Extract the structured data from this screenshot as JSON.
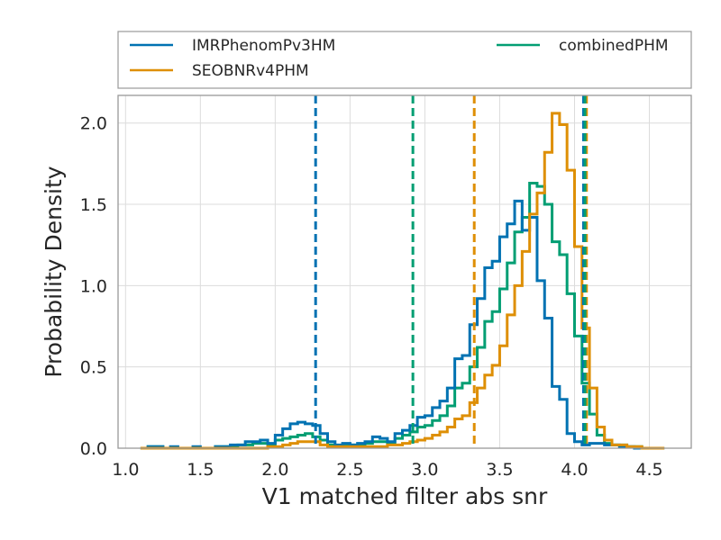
{
  "chart_data": {
    "type": "histogram",
    "xlabel": "V1 matched filter abs snr",
    "ylabel": "Probability Density",
    "xlim": [
      0.95,
      4.78
    ],
    "ylim": [
      0,
      2.17
    ],
    "xticks": [
      1.0,
      1.5,
      2.0,
      2.5,
      3.0,
      3.5,
      4.0,
      4.5
    ],
    "xtick_labels": [
      "1.0",
      "1.5",
      "2.0",
      "2.5",
      "3.0",
      "3.5",
      "4.0",
      "4.5"
    ],
    "yticks": [
      0.0,
      0.5,
      1.0,
      1.5,
      2.0
    ],
    "ytick_labels": [
      "0.0",
      "0.5",
      "1.0",
      "1.5",
      "2.0"
    ],
    "grid": true,
    "legend_position": "top, outside",
    "series": [
      {
        "name": "IMRPhenomPv3HM",
        "color": "#0072b2",
        "bin_edges": [
          1.1,
          1.15,
          1.2,
          1.25,
          1.3,
          1.35,
          1.4,
          1.45,
          1.5,
          1.55,
          1.6,
          1.65,
          1.7,
          1.75,
          1.8,
          1.85,
          1.9,
          1.95,
          2.0,
          2.05,
          2.1,
          2.15,
          2.2,
          2.25,
          2.3,
          2.35,
          2.4,
          2.45,
          2.5,
          2.55,
          2.6,
          2.65,
          2.7,
          2.75,
          2.8,
          2.85,
          2.9,
          2.95,
          3.0,
          3.05,
          3.1,
          3.15,
          3.2,
          3.25,
          3.3,
          3.35,
          3.4,
          3.45,
          3.5,
          3.55,
          3.6,
          3.65,
          3.7,
          3.75,
          3.8,
          3.85,
          3.9,
          3.95,
          4.0,
          4.05,
          4.1,
          4.15,
          4.2,
          4.25,
          4.3,
          4.35,
          4.4,
          4.45,
          4.5,
          4.55,
          4.6
        ],
        "values": [
          0.0,
          0.01,
          0.01,
          0.0,
          0.01,
          0.0,
          0.0,
          0.01,
          0.0,
          0.0,
          0.01,
          0.01,
          0.02,
          0.02,
          0.04,
          0.04,
          0.05,
          0.03,
          0.08,
          0.12,
          0.15,
          0.16,
          0.15,
          0.14,
          0.09,
          0.04,
          0.02,
          0.03,
          0.02,
          0.03,
          0.04,
          0.07,
          0.06,
          0.04,
          0.09,
          0.11,
          0.14,
          0.19,
          0.2,
          0.25,
          0.29,
          0.37,
          0.55,
          0.57,
          0.76,
          0.92,
          1.11,
          1.15,
          1.3,
          1.38,
          1.52,
          1.34,
          1.42,
          1.03,
          0.8,
          0.38,
          0.3,
          0.09,
          0.04,
          0.02,
          0.03,
          0.03,
          0.02,
          0.02,
          0.01,
          0.01,
          0.0,
          0.0,
          0.0,
          0.0
        ]
      },
      {
        "name": "SEOBNRv4PHM",
        "color": "#de8f05",
        "bin_edges": [
          1.1,
          1.15,
          1.2,
          1.25,
          1.3,
          1.35,
          1.4,
          1.45,
          1.5,
          1.55,
          1.6,
          1.65,
          1.7,
          1.75,
          1.8,
          1.85,
          1.9,
          1.95,
          2.0,
          2.05,
          2.1,
          2.15,
          2.2,
          2.25,
          2.3,
          2.35,
          2.4,
          2.45,
          2.5,
          2.55,
          2.6,
          2.65,
          2.7,
          2.75,
          2.8,
          2.85,
          2.9,
          2.95,
          3.0,
          3.05,
          3.1,
          3.15,
          3.2,
          3.25,
          3.3,
          3.35,
          3.4,
          3.45,
          3.5,
          3.55,
          3.6,
          3.65,
          3.7,
          3.75,
          3.8,
          3.85,
          3.9,
          3.95,
          4.0,
          4.05,
          4.1,
          4.15,
          4.2,
          4.25,
          4.3,
          4.35,
          4.4,
          4.45,
          4.5,
          4.55,
          4.6
        ],
        "values": [
          0.0,
          0.0,
          0.0,
          0.0,
          0.0,
          0.0,
          0.0,
          0.0,
          0.0,
          0.0,
          0.0,
          0.0,
          0.0,
          0.0,
          0.0,
          0.0,
          0.0,
          0.01,
          0.01,
          0.02,
          0.03,
          0.04,
          0.04,
          0.04,
          0.02,
          0.01,
          0.01,
          0.01,
          0.01,
          0.01,
          0.01,
          0.01,
          0.01,
          0.02,
          0.02,
          0.03,
          0.04,
          0.05,
          0.06,
          0.08,
          0.1,
          0.13,
          0.18,
          0.2,
          0.28,
          0.37,
          0.45,
          0.51,
          0.63,
          0.82,
          1.0,
          1.21,
          1.44,
          1.57,
          1.82,
          2.06,
          1.99,
          1.71,
          1.24,
          0.74,
          0.37,
          0.13,
          0.05,
          0.02,
          0.02,
          0.01,
          0.01,
          0.0,
          0.0,
          0.0
        ]
      },
      {
        "name": "combinedPHM",
        "color": "#029e73",
        "bin_edges": [
          1.1,
          1.15,
          1.2,
          1.25,
          1.3,
          1.35,
          1.4,
          1.45,
          1.5,
          1.55,
          1.6,
          1.65,
          1.7,
          1.75,
          1.8,
          1.85,
          1.9,
          1.95,
          2.0,
          2.05,
          2.1,
          2.15,
          2.2,
          2.25,
          2.3,
          2.35,
          2.4,
          2.45,
          2.5,
          2.55,
          2.6,
          2.65,
          2.7,
          2.75,
          2.8,
          2.85,
          2.9,
          2.95,
          3.0,
          3.05,
          3.1,
          3.15,
          3.2,
          3.25,
          3.3,
          3.35,
          3.4,
          3.45,
          3.5,
          3.55,
          3.6,
          3.65,
          3.7,
          3.75,
          3.8,
          3.85,
          3.9,
          3.95,
          4.0,
          4.05,
          4.1,
          4.15,
          4.2,
          4.25,
          4.3,
          4.35,
          4.4,
          4.45,
          4.5,
          4.55,
          4.6
        ],
        "values": [
          0.0,
          0.01,
          0.01,
          0.0,
          0.0,
          0.0,
          0.0,
          0.0,
          0.0,
          0.0,
          0.01,
          0.01,
          0.01,
          0.02,
          0.02,
          0.03,
          0.03,
          0.02,
          0.05,
          0.06,
          0.07,
          0.08,
          0.09,
          0.07,
          0.05,
          0.02,
          0.01,
          0.02,
          0.02,
          0.02,
          0.03,
          0.04,
          0.04,
          0.03,
          0.06,
          0.08,
          0.1,
          0.13,
          0.14,
          0.17,
          0.2,
          0.26,
          0.37,
          0.4,
          0.5,
          0.62,
          0.78,
          0.84,
          0.98,
          1.14,
          1.33,
          1.42,
          1.63,
          1.61,
          1.5,
          1.27,
          1.19,
          0.95,
          0.69,
          0.4,
          0.21,
          0.08,
          0.03,
          0.02,
          0.02,
          0.01,
          0.01,
          0.0,
          0.0,
          0.0
        ]
      }
    ],
    "vlines": [
      {
        "series": "IMRPhenomPv3HM",
        "x": 2.27,
        "color": "#0072b2"
      },
      {
        "series": "IMRPhenomPv3HM",
        "x": 4.06,
        "color": "#0072b2"
      },
      {
        "series": "SEOBNRv4PHM",
        "x": 3.33,
        "color": "#de8f05"
      },
      {
        "series": "SEOBNRv4PHM",
        "x": 4.08,
        "color": "#de8f05"
      },
      {
        "series": "combinedPHM",
        "x": 2.92,
        "color": "#029e73"
      },
      {
        "series": "combinedPHM",
        "x": 4.07,
        "color": "#029e73"
      }
    ]
  },
  "legend": {
    "entries": [
      {
        "label": "IMRPhenomPv3HM",
        "color": "#0072b2"
      },
      {
        "label": "SEOBNRv4PHM",
        "color": "#de8f05"
      },
      {
        "label": "combinedPHM",
        "color": "#029e73"
      }
    ]
  }
}
